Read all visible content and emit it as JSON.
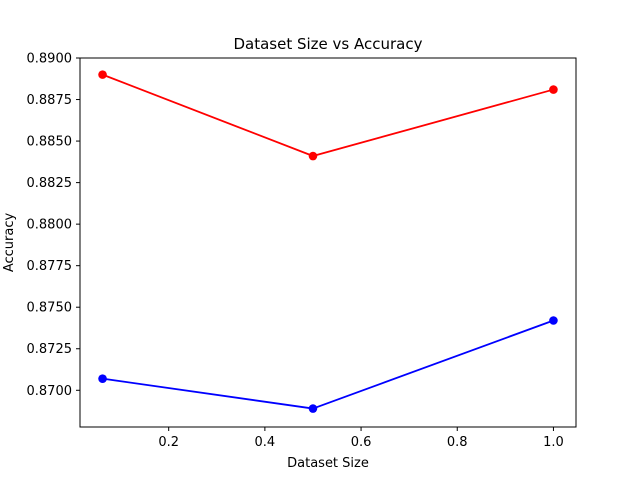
{
  "chart_data": {
    "type": "line",
    "title": "Dataset Size vs Accuracy",
    "xlabel": "Dataset Size",
    "ylabel": "Accuracy",
    "x": [
      0.0625,
      0.5,
      1.0
    ],
    "xlim": [
      0.0156,
      1.0469
    ],
    "ylim": [
      0.86779,
      0.89
    ],
    "xticks": [
      0.2,
      0.4,
      0.6,
      0.8,
      1.0
    ],
    "xtick_labels": [
      "0.2",
      "0.4",
      "0.6",
      "0.8",
      "1.0"
    ],
    "yticks": [
      0.87,
      0.8725,
      0.875,
      0.8775,
      0.88,
      0.8825,
      0.885,
      0.8875,
      0.89
    ],
    "ytick_labels": [
      "0.8700",
      "0.8725",
      "0.8750",
      "0.8775",
      "0.8800",
      "0.8825",
      "0.8850",
      "0.8875",
      "0.8900"
    ],
    "grid": false,
    "series": [
      {
        "color": "#ff0000",
        "values": [
          0.889,
          0.8841,
          0.8881
        ]
      },
      {
        "color": "#0000ff",
        "values": [
          0.8707,
          0.8689,
          0.8742
        ]
      }
    ]
  }
}
